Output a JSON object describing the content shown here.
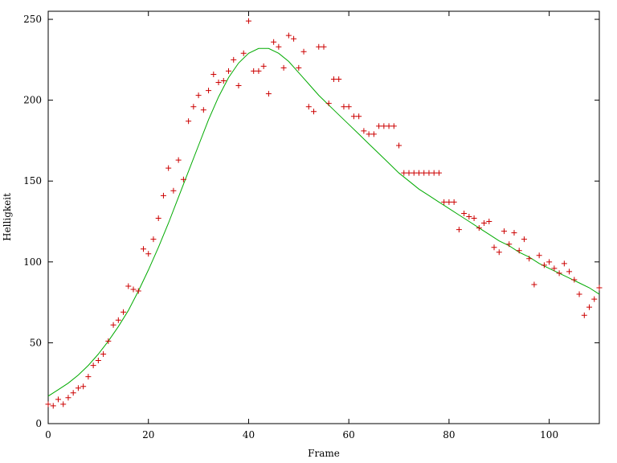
{
  "chart_data": {
    "type": "scatter",
    "xlabel": "Frame",
    "ylabel": "Helligkeit",
    "xlim": [
      0,
      110
    ],
    "ylim": [
      0,
      255
    ],
    "x_ticks": [
      0,
      20,
      40,
      60,
      80,
      100
    ],
    "y_ticks": [
      0,
      50,
      100,
      150,
      200,
      250
    ],
    "x_tick_labels": [
      "0",
      "20",
      "40",
      "60",
      "80",
      "100"
    ],
    "y_tick_labels": [
      "0",
      "50",
      "100",
      "150",
      "200",
      "250"
    ],
    "grid": false,
    "legend": "none",
    "colors": {
      "points": "#cc0000",
      "fit": "#00aa00",
      "axes": "#000000"
    },
    "series": [
      {
        "kind": "points",
        "marker": "plus",
        "x": [
          0,
          1,
          2,
          3,
          4,
          5,
          6,
          7,
          8,
          9,
          10,
          11,
          12,
          13,
          14,
          15,
          16,
          17,
          18,
          19,
          20,
          21,
          22,
          23,
          24,
          25,
          26,
          27,
          28,
          29,
          30,
          31,
          32,
          33,
          34,
          35,
          36,
          37,
          38,
          39,
          40,
          41,
          42,
          43,
          44,
          45,
          46,
          47,
          48,
          49,
          50,
          51,
          52,
          53,
          54,
          55,
          56,
          57,
          58,
          59,
          60,
          61,
          62,
          63,
          64,
          65,
          66,
          67,
          68,
          69,
          70,
          71,
          72,
          73,
          74,
          75,
          76,
          77,
          78,
          79,
          80,
          81,
          82,
          83,
          84,
          85,
          86,
          87,
          88,
          89,
          90,
          91,
          92,
          93,
          94,
          95,
          96,
          97,
          98,
          99,
          100,
          101,
          102,
          103,
          104,
          105,
          106,
          107,
          108,
          109,
          110
        ],
        "y": [
          12,
          11,
          15,
          12,
          16,
          19,
          22,
          23,
          29,
          36,
          39,
          43,
          51,
          61,
          64,
          69,
          85,
          83,
          82,
          108,
          105,
          114,
          127,
          141,
          158,
          144,
          163,
          151,
          187,
          196,
          203,
          194,
          206,
          216,
          211,
          212,
          218,
          225,
          209,
          229,
          249,
          218,
          218,
          221,
          204,
          236,
          233,
          220,
          240,
          238,
          220,
          230,
          196,
          193,
          233,
          233,
          198,
          213,
          213,
          196,
          196,
          190,
          190,
          181,
          179,
          179,
          184,
          184,
          184,
          184,
          172,
          155,
          155,
          155,
          155,
          155,
          155,
          155,
          155,
          137,
          137,
          137,
          120,
          130,
          128,
          127,
          121,
          124,
          125,
          109,
          106,
          119,
          111,
          118,
          107,
          114,
          102,
          86,
          104,
          98,
          100,
          96,
          93,
          99,
          94,
          89,
          80,
          67,
          72,
          77,
          84
        ]
      },
      {
        "kind": "fit",
        "x": [
          0,
          2,
          4,
          6,
          8,
          10,
          12,
          14,
          16,
          18,
          20,
          22,
          24,
          26,
          28,
          30,
          32,
          34,
          36,
          38,
          40,
          42,
          44,
          46,
          48,
          50,
          52,
          54,
          56,
          58,
          60,
          62,
          64,
          66,
          68,
          70,
          72,
          74,
          76,
          78,
          80,
          82,
          84,
          86,
          88,
          90,
          92,
          94,
          96,
          98,
          100,
          102,
          104,
          106,
          108,
          110
        ],
        "y": [
          17,
          21,
          25,
          30,
          36,
          43,
          51,
          60,
          70,
          82,
          95,
          109,
          124,
          140,
          156,
          172,
          188,
          202,
          214,
          223,
          229,
          232,
          232,
          229,
          224,
          217,
          210,
          203,
          197,
          191,
          185,
          179,
          173,
          167,
          161,
          155,
          150,
          145,
          141,
          137,
          133,
          129,
          125,
          121,
          117,
          113,
          110,
          106,
          103,
          99,
          96,
          93,
          90,
          87,
          84,
          80
        ]
      }
    ]
  }
}
